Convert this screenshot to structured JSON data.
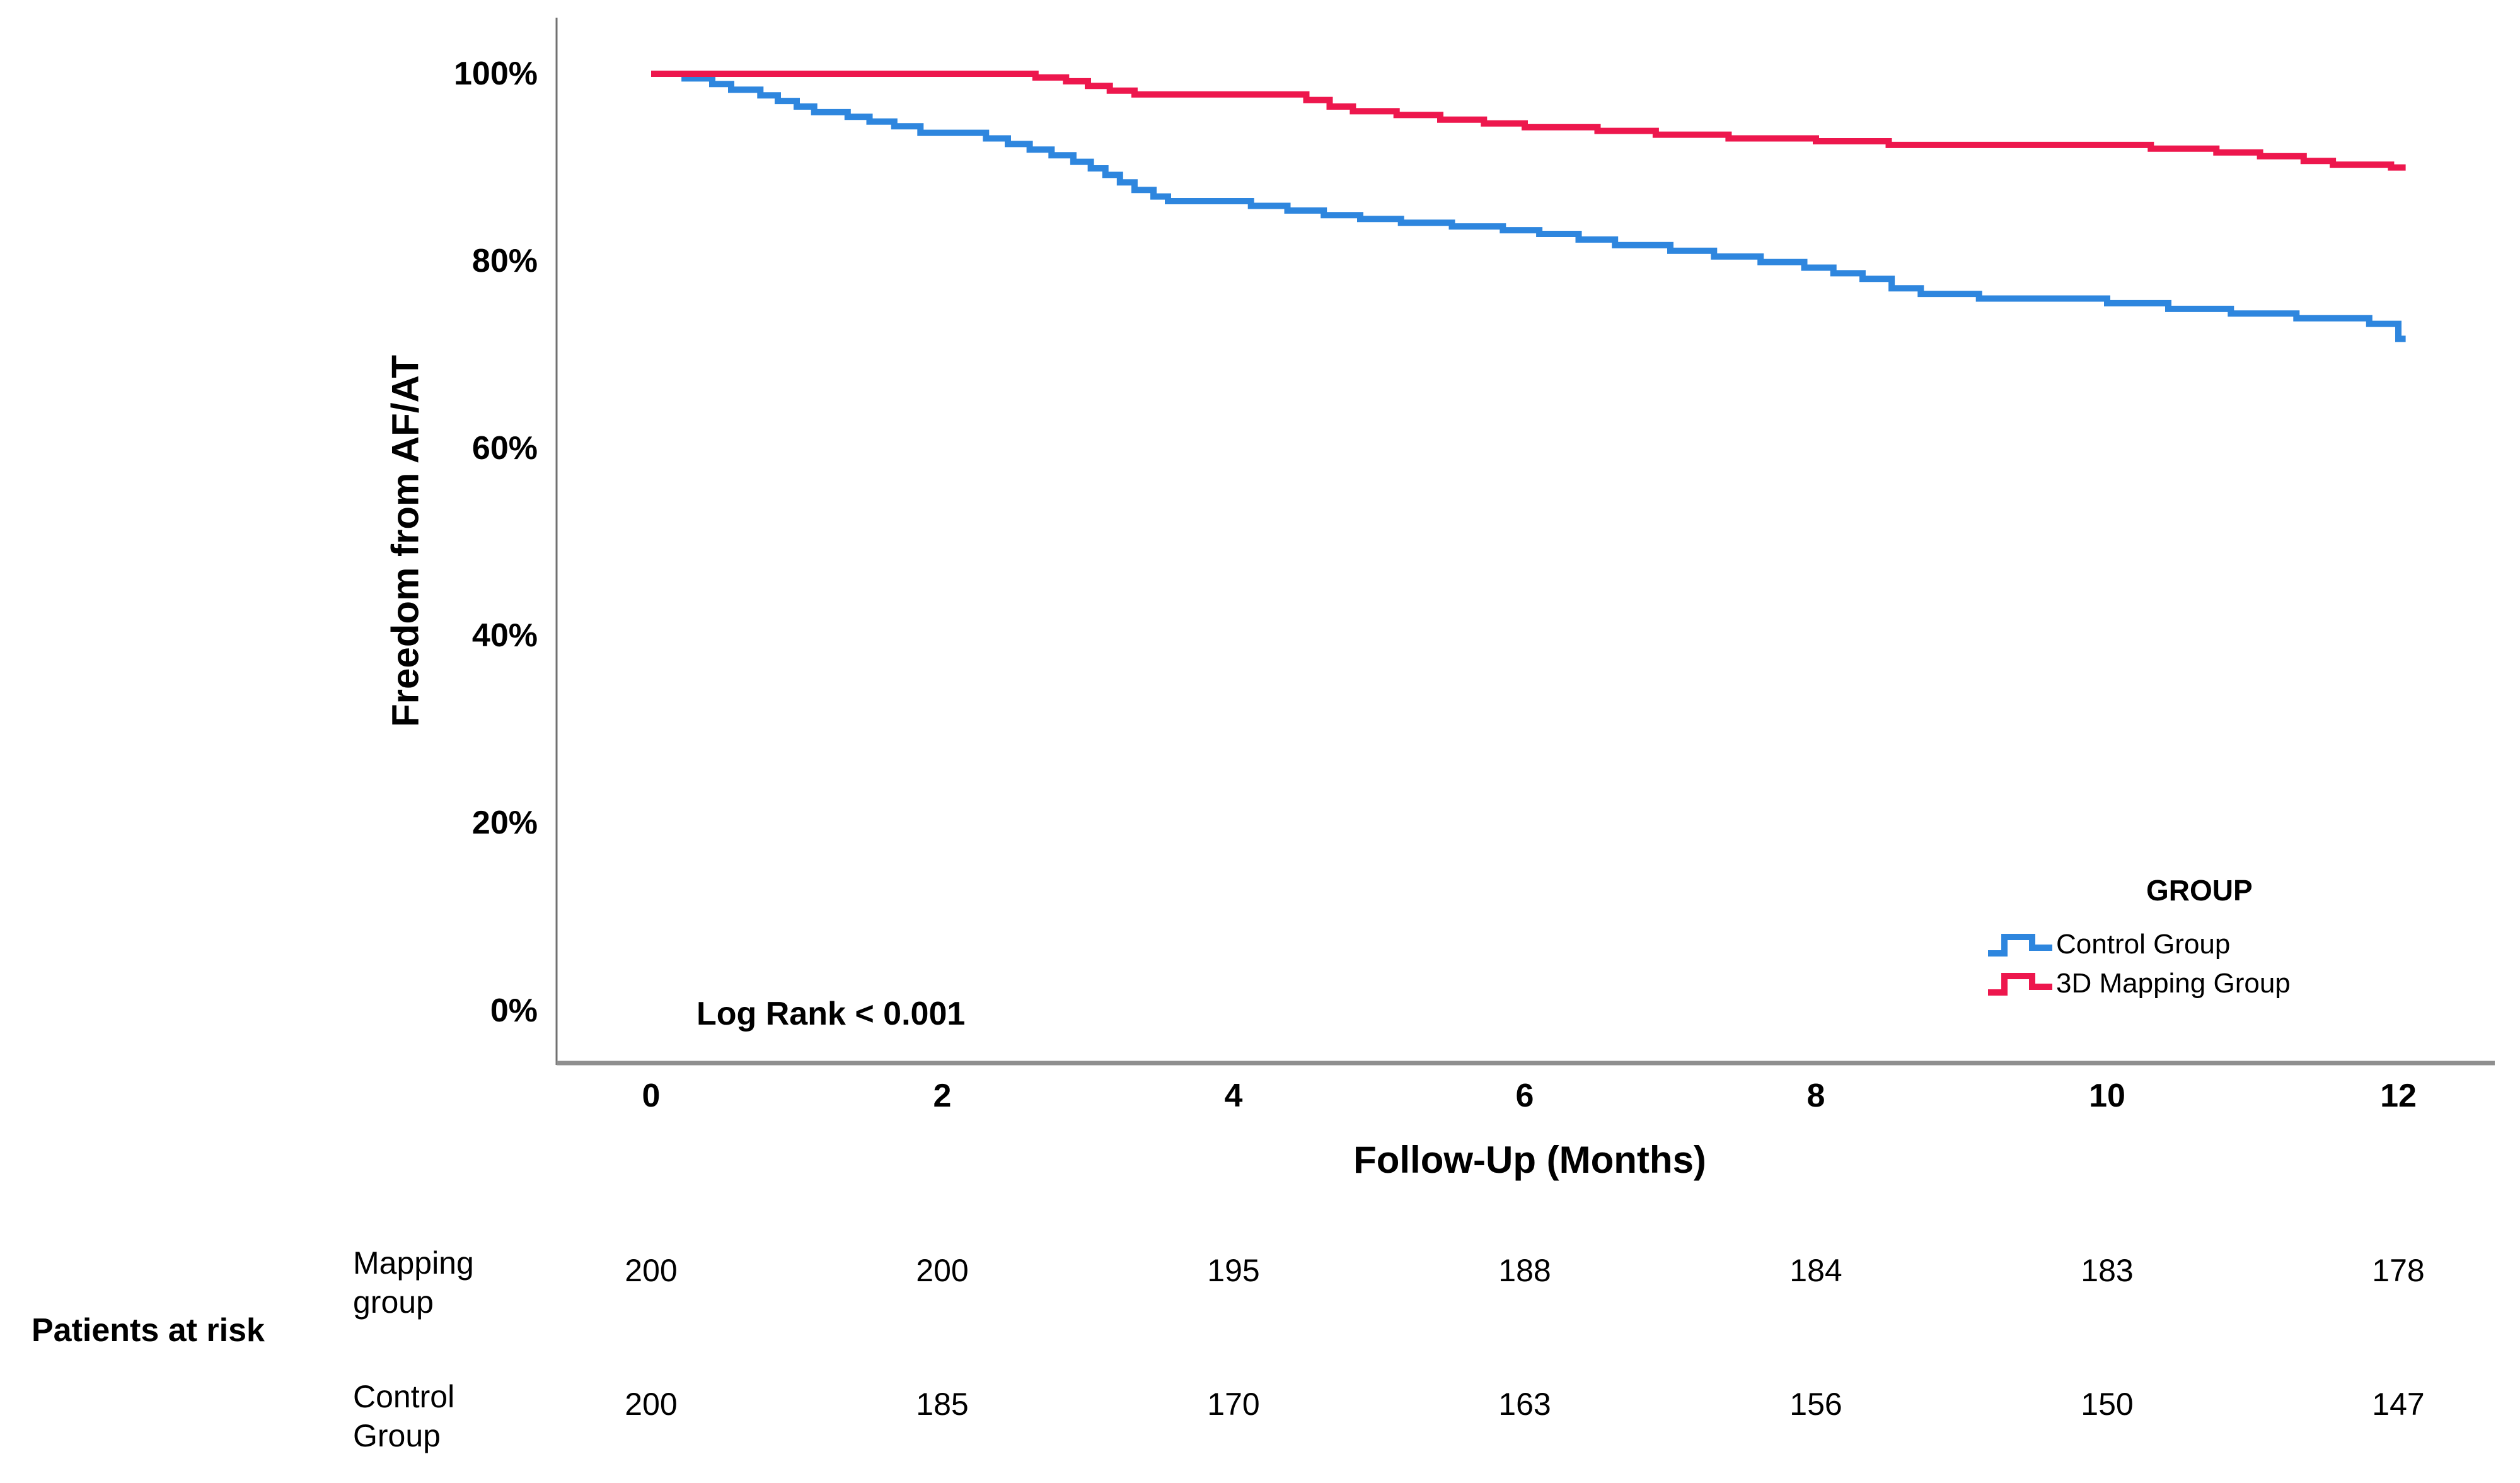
{
  "chart_data": {
    "type": "line",
    "subtype": "kaplan-meier-step",
    "title": "",
    "xlabel": "Follow-Up (Months)",
    "ylabel": "Freedom from AF/AT",
    "xlim": [
      0,
      12.05
    ],
    "ylim": [
      0,
      100
    ],
    "grid": false,
    "legend_position": "right-bottom-inside",
    "annotation": "Log Rank < 0.001",
    "x_axis": {
      "label": "Follow-Up (Months)",
      "ticks": [
        {
          "label": "0",
          "value": 0
        },
        {
          "label": "2",
          "value": 2
        },
        {
          "label": "4",
          "value": 4
        },
        {
          "label": "6",
          "value": 6
        },
        {
          "label": "8",
          "value": 8
        },
        {
          "label": "10",
          "value": 10
        },
        {
          "label": "12",
          "value": 12
        }
      ]
    },
    "y_axis": {
      "label": "Freedom from AF/AT",
      "ticks": [
        {
          "label": "100%",
          "value": 100
        },
        {
          "label": "80%",
          "value": 80
        },
        {
          "label": "60%",
          "value": 60
        },
        {
          "label": "40%",
          "value": 40
        },
        {
          "label": "20%",
          "value": 20
        },
        {
          "label": "0%",
          "value": 0
        }
      ]
    },
    "legend": {
      "title": "GROUP",
      "entries": [
        {
          "label": "Control Group",
          "color": "#2E86DE"
        },
        {
          "label": "3D Mapping Group",
          "color": "#ED174D"
        }
      ]
    },
    "series": [
      {
        "name": "Control Group",
        "color": "#2E86DE",
        "end_month": 12.05,
        "points": [
          [
            0,
            100
          ],
          [
            0.23,
            99.5
          ],
          [
            0.42,
            98.9
          ],
          [
            0.55,
            98.3
          ],
          [
            0.75,
            97.7
          ],
          [
            0.87,
            97.1
          ],
          [
            1.0,
            96.5
          ],
          [
            1.12,
            95.9
          ],
          [
            1.35,
            95.4
          ],
          [
            1.5,
            94.9
          ],
          [
            1.67,
            94.4
          ],
          [
            1.85,
            93.7
          ],
          [
            2.3,
            93.1
          ],
          [
            2.45,
            92.5
          ],
          [
            2.6,
            91.9
          ],
          [
            2.75,
            91.3
          ],
          [
            2.9,
            90.6
          ],
          [
            3.02,
            89.9
          ],
          [
            3.12,
            89.2
          ],
          [
            3.22,
            88.4
          ],
          [
            3.32,
            87.6
          ],
          [
            3.45,
            86.9
          ],
          [
            3.55,
            86.4
          ],
          [
            4.12,
            85.9
          ],
          [
            4.37,
            85.4
          ],
          [
            4.62,
            84.9
          ],
          [
            4.87,
            84.5
          ],
          [
            5.15,
            84.1
          ],
          [
            5.5,
            83.7
          ],
          [
            5.85,
            83.3
          ],
          [
            6.1,
            82.9
          ],
          [
            6.37,
            82.3
          ],
          [
            6.62,
            81.7
          ],
          [
            7.0,
            81.1
          ],
          [
            7.3,
            80.5
          ],
          [
            7.62,
            79.9
          ],
          [
            7.92,
            79.3
          ],
          [
            8.12,
            78.7
          ],
          [
            8.32,
            78.1
          ],
          [
            8.52,
            77.1
          ],
          [
            8.72,
            76.5
          ],
          [
            9.12,
            76.0
          ],
          [
            10.0,
            75.5
          ],
          [
            10.42,
            74.9
          ],
          [
            10.85,
            74.4
          ],
          [
            11.3,
            73.9
          ],
          [
            11.8,
            73.3
          ],
          [
            12.0,
            71.7
          ]
        ]
      },
      {
        "name": "3D Mapping Group",
        "color": "#ED174D",
        "end_month": 12.05,
        "points": [
          [
            0,
            100
          ],
          [
            2.64,
            99.6
          ],
          [
            2.85,
            99.2
          ],
          [
            3.0,
            98.7
          ],
          [
            3.15,
            98.2
          ],
          [
            3.32,
            97.8
          ],
          [
            4.5,
            97.2
          ],
          [
            4.66,
            96.5
          ],
          [
            4.82,
            96.0
          ],
          [
            5.12,
            95.6
          ],
          [
            5.42,
            95.1
          ],
          [
            5.72,
            94.7
          ],
          [
            6.0,
            94.3
          ],
          [
            6.5,
            93.9
          ],
          [
            6.9,
            93.5
          ],
          [
            7.4,
            93.1
          ],
          [
            8.0,
            92.8
          ],
          [
            8.5,
            92.4
          ],
          [
            10.3,
            92.0
          ],
          [
            10.75,
            91.6
          ],
          [
            11.05,
            91.2
          ],
          [
            11.35,
            90.7
          ],
          [
            11.55,
            90.3
          ],
          [
            11.95,
            90.0
          ]
        ]
      }
    ]
  },
  "risk_table": {
    "title": "Patients at risk",
    "columns_months": [
      0,
      2,
      4,
      6,
      8,
      10,
      12
    ],
    "rows": [
      {
        "label": "Mapping group",
        "values": [
          "200",
          "200",
          "195",
          "188",
          "184",
          "183",
          "178"
        ]
      },
      {
        "label": "Control Group",
        "values": [
          "200",
          "185",
          "170",
          "163",
          "156",
          "150",
          "147"
        ]
      }
    ]
  },
  "colors": {
    "control": "#2E86DE",
    "mapping": "#ED174D",
    "x_axis_line": "#8F8F8F",
    "y_axis_line": "#707070",
    "text": "#000000",
    "background": "#FFFFFF"
  }
}
